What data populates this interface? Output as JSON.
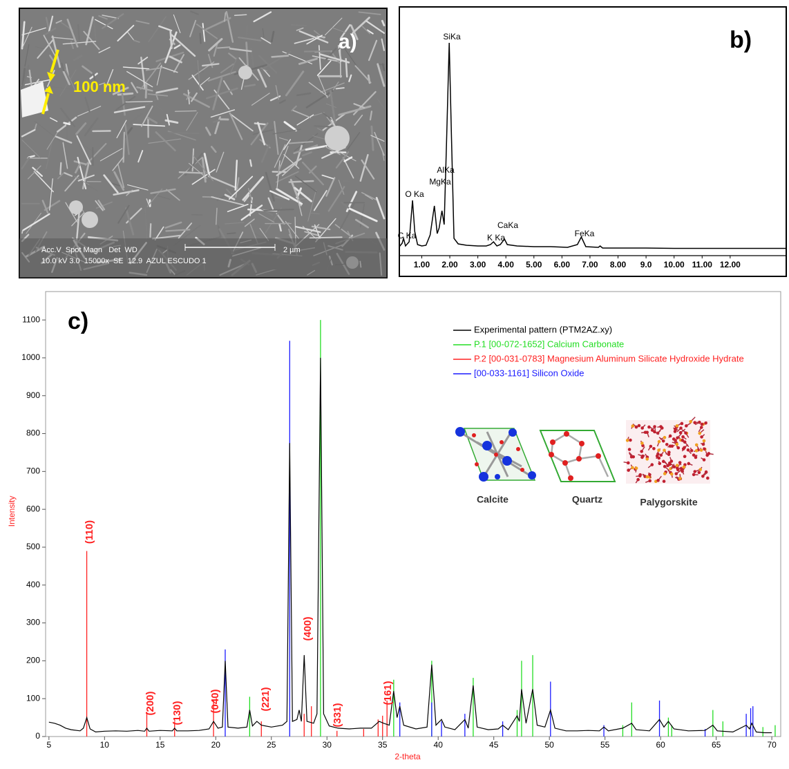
{
  "sem_image": {
    "panel_label": "a)",
    "scale_note": "100 nm",
    "info_header": "Acc.V  Spot Magn   Det  WD",
    "info_values": "10.0 kV 3.0  15000x  SE  12.9  AZUL ESCUDO 1",
    "scale_bar": "2 µm"
  },
  "chart_data": [
    {
      "type": "line",
      "title": "b)",
      "color": "#000000",
      "x": [
        0.2,
        0.3,
        0.35,
        0.42,
        0.55,
        0.67,
        0.75,
        0.85,
        1.0,
        1.15,
        1.3,
        1.45,
        1.55,
        1.62,
        1.72,
        1.8,
        1.88,
        1.98,
        2.06,
        2.15,
        2.3,
        2.6,
        3.0,
        3.3,
        3.45,
        3.56,
        3.68,
        3.8,
        3.95,
        4.05,
        4.4,
        5.0,
        5.6,
        6.2,
        6.55,
        6.69,
        6.85,
        7.3,
        7.36,
        7.45,
        8.0,
        9.0,
        10.0,
        12.0,
        14.0
      ],
      "values": [
        3,
        8,
        15,
        4,
        10,
        70,
        25,
        6,
        4,
        5,
        20,
        62,
        22,
        30,
        55,
        35,
        150,
        298,
        160,
        15,
        7,
        5,
        4,
        4,
        6,
        10,
        4,
        6,
        14,
        6,
        4,
        3,
        3,
        2,
        6,
        17,
        3,
        2,
        4,
        1,
        1,
        1,
        0.5,
        0.5,
        0.5
      ],
      "xlim": [
        0.2,
        14
      ],
      "ylim": [
        0,
        310
      ],
      "xticks": [
        {
          "value": 1,
          "label": "1.00"
        },
        {
          "value": 2,
          "label": "2.00"
        },
        {
          "value": 3,
          "label": "3.00"
        },
        {
          "value": 4,
          "label": "4.00"
        },
        {
          "value": 5,
          "label": "5.00"
        },
        {
          "value": 6,
          "label": "6.00"
        },
        {
          "value": 7,
          "label": "7.00"
        },
        {
          "value": 8,
          "label": "8.00"
        },
        {
          "value": 9,
          "label": "9.0"
        },
        {
          "value": 10,
          "label": "10.00"
        },
        {
          "value": 11,
          "label": "11.00"
        },
        {
          "value": 12,
          "label": "12.00"
        }
      ],
      "peak_labels": [
        "SiKa",
        "AlKa",
        "MgKa",
        "O Ka",
        "C Ka",
        "K Ka",
        "CaKa",
        "FeKa"
      ]
    },
    {
      "type": "xrd",
      "title": "c)",
      "x_label": "2-theta",
      "y_label": "Intensity",
      "xlim": [
        4.7,
        70.8
      ],
      "ylim": [
        0,
        1175
      ],
      "xticks": [
        5,
        10,
        15,
        20,
        25,
        30,
        35,
        40,
        45,
        50,
        55,
        60,
        65,
        70
      ],
      "yticks": [
        0,
        100,
        200,
        300,
        400,
        500,
        600,
        700,
        800,
        900,
        1000,
        1100
      ],
      "series": [
        {
          "name": "Experimental pattern (PTM2AZ.xy)",
          "color": "#000000",
          "style": "line",
          "x": [
            5.0,
            5.5,
            6.0,
            6.5,
            7.0,
            7.8,
            8.1,
            8.4,
            8.7,
            9.2,
            10.0,
            11.0,
            12.0,
            13.0,
            13.6,
            13.8,
            14.0,
            15.0,
            16.1,
            16.3,
            16.5,
            17.5,
            18.5,
            19.4,
            19.8,
            20.2,
            20.6,
            20.85,
            21.1,
            22.0,
            22.8,
            23.05,
            23.3,
            23.7,
            24.1,
            25.0,
            26.0,
            26.4,
            26.65,
            26.9,
            27.3,
            27.5,
            27.7,
            27.95,
            28.2,
            28.8,
            29.1,
            29.42,
            29.7,
            30.2,
            31.0,
            32.0,
            33.0,
            34.0,
            34.7,
            35.1,
            35.6,
            36.0,
            36.3,
            36.55,
            36.9,
            38.0,
            39.0,
            39.42,
            39.8,
            40.3,
            40.6,
            41.5,
            42.4,
            42.7,
            43.15,
            43.5,
            44.5,
            45.4,
            45.8,
            46.3,
            47.1,
            47.3,
            47.5,
            47.9,
            48.5,
            48.9,
            49.6,
            50.1,
            50.5,
            51.5,
            52.5,
            53.5,
            54.5,
            54.9,
            55.3,
            56.6,
            57.4,
            57.8,
            59.0,
            59.9,
            60.3,
            60.7,
            61.2,
            62.5,
            64.0,
            64.7,
            65.1,
            66.5,
            67.7,
            68.0,
            68.2,
            68.6,
            69.3,
            70.0
          ],
          "values": [
            38,
            35,
            30,
            22,
            18,
            15,
            22,
            50,
            20,
            12,
            14,
            15,
            14,
            16,
            14,
            22,
            14,
            16,
            15,
            22,
            15,
            15,
            16,
            20,
            40,
            22,
            25,
            200,
            25,
            22,
            25,
            70,
            28,
            40,
            30,
            25,
            30,
            40,
            775,
            40,
            45,
            70,
            40,
            215,
            40,
            35,
            60,
            1000,
            60,
            28,
            22,
            20,
            22,
            22,
            40,
            35,
            30,
            120,
            50,
            80,
            30,
            20,
            25,
            190,
            30,
            45,
            25,
            18,
            45,
            22,
            135,
            25,
            18,
            20,
            30,
            18,
            55,
            40,
            125,
            35,
            125,
            30,
            25,
            70,
            22,
            15,
            15,
            16,
            15,
            25,
            15,
            22,
            35,
            18,
            15,
            45,
            25,
            40,
            20,
            15,
            16,
            30,
            15,
            12,
            30,
            20,
            35,
            12,
            10,
            10
          ]
        },
        {
          "name": "P.1 [00-072-1652] Calcium Carbonate",
          "color": "#22dd22",
          "style": "stick",
          "x": [
            23.05,
            29.42,
            36.0,
            39.42,
            43.15,
            47.1,
            47.5,
            48.5,
            56.6,
            57.4,
            60.7,
            61.0,
            64.7,
            65.6,
            69.2,
            70.3
          ],
          "values": [
            105,
            1100,
            150,
            200,
            155,
            70,
            200,
            215,
            30,
            90,
            50,
            30,
            70,
            40,
            25,
            30
          ]
        },
        {
          "name": "P.2 [00-031-0783] Magnesium Aluminum Silicate Hydroxide Hydrate",
          "color": "#ff2020",
          "style": "stick",
          "x": [
            8.4,
            13.8,
            16.3,
            19.8,
            24.1,
            27.95,
            28.6,
            30.9,
            33.3,
            34.6,
            35.0,
            35.4
          ],
          "values": [
            490,
            65,
            40,
            95,
            40,
            60,
            80,
            15,
            20,
            45,
            55,
            95
          ]
        },
        {
          "name": "[00-033-1161] Silicon Oxide",
          "color": "#1a1aff",
          "style": "stick",
          "x": [
            20.85,
            26.65,
            36.55,
            39.42,
            40.3,
            42.4,
            45.8,
            50.1,
            54.9,
            59.9,
            64.0,
            67.7,
            68.1,
            68.3
          ],
          "values": [
            230,
            1045,
            90,
            90,
            40,
            60,
            40,
            145,
            30,
            95,
            20,
            60,
            75,
            80
          ]
        }
      ],
      "miller_labels": [
        "(110)",
        "(200)",
        "(130)",
        "(040)",
        "(221)",
        "(400)",
        "(331)",
        "(161)"
      ],
      "inset_labels": [
        "Calcite",
        "Quartz",
        "Palygorskite"
      ]
    }
  ]
}
